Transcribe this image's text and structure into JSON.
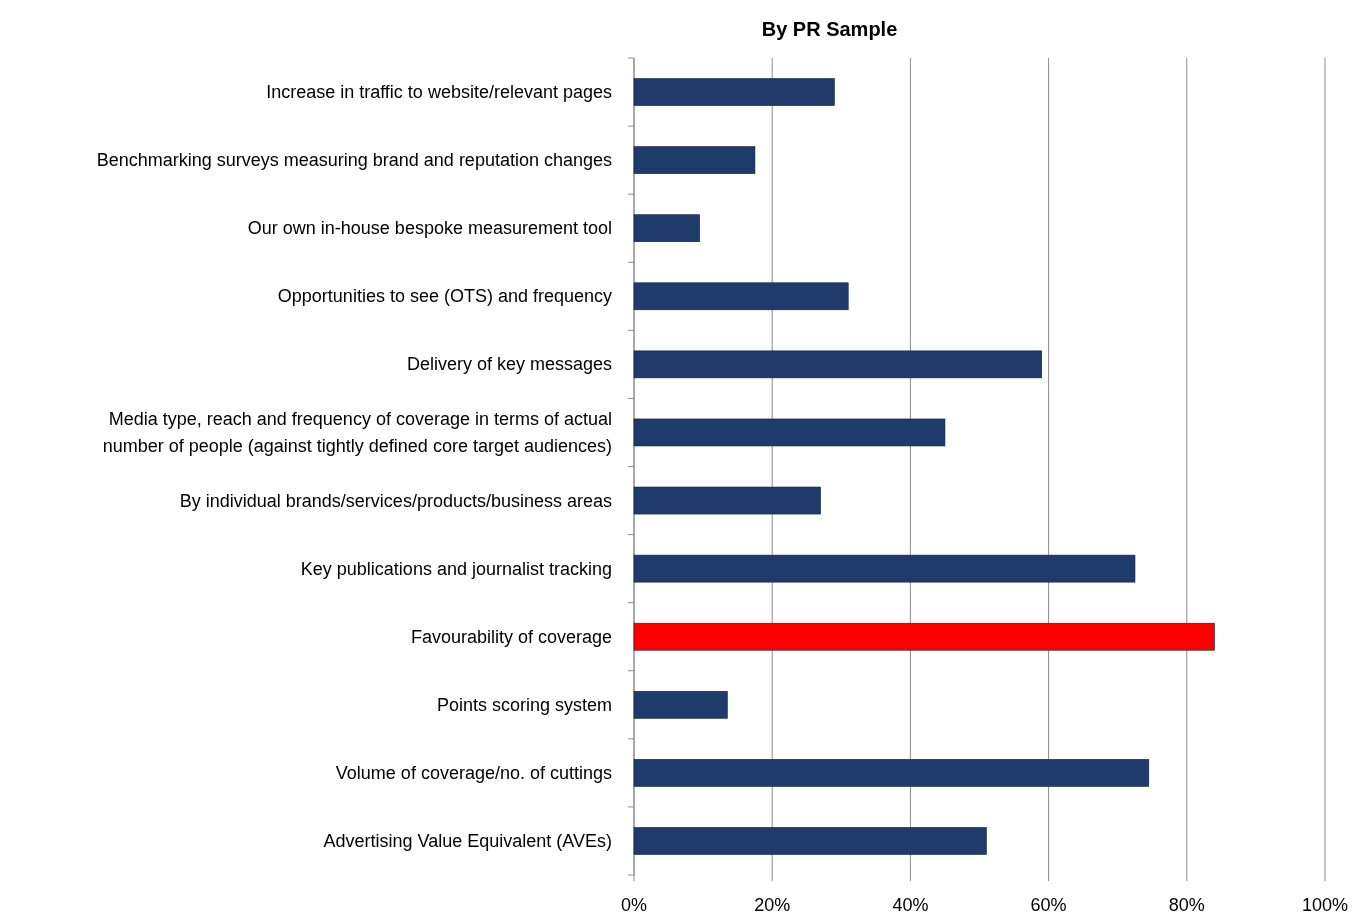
{
  "chart_data": {
    "type": "bar",
    "orientation": "horizontal",
    "title": "By PR Sample",
    "categories": [
      "Increase in traffic to website/relevant pages",
      "Benchmarking surveys measuring brand and reputation changes",
      "Our own in-house bespoke measurement tool",
      "Opportunities to see (OTS) and frequency",
      "Delivery of key messages",
      "Media type, reach and frequency of coverage in terms of actual number of people (against tightly defined core target audiences)",
      "By individual brands/services/products/business areas",
      "Key publications and journalist tracking",
      "Favourability of coverage",
      "Points scoring system",
      "Volume of coverage/no. of cuttings",
      "Advertising Value Equivalent (AVEs)"
    ],
    "values": [
      29,
      17.5,
      9.5,
      31,
      59,
      45,
      27,
      72.5,
      84,
      13.5,
      74.5,
      51
    ],
    "colors": [
      "#1f3b6b",
      "#1f3b6b",
      "#1f3b6b",
      "#1f3b6b",
      "#1f3b6b",
      "#1f3b6b",
      "#1f3b6b",
      "#1f3b6b",
      "#ff0000",
      "#1f3b6b",
      "#1f3b6b",
      "#1f3b6b"
    ],
    "xlim": [
      0,
      100
    ],
    "xticks": [
      {
        "value": 0,
        "label": "0%"
      },
      {
        "value": 20,
        "label": "20%"
      },
      {
        "value": 40,
        "label": "40%"
      },
      {
        "value": 60,
        "label": "60%"
      },
      {
        "value": 80,
        "label": "80%"
      },
      {
        "value": 100,
        "label": "100%"
      }
    ],
    "grid": "x"
  }
}
